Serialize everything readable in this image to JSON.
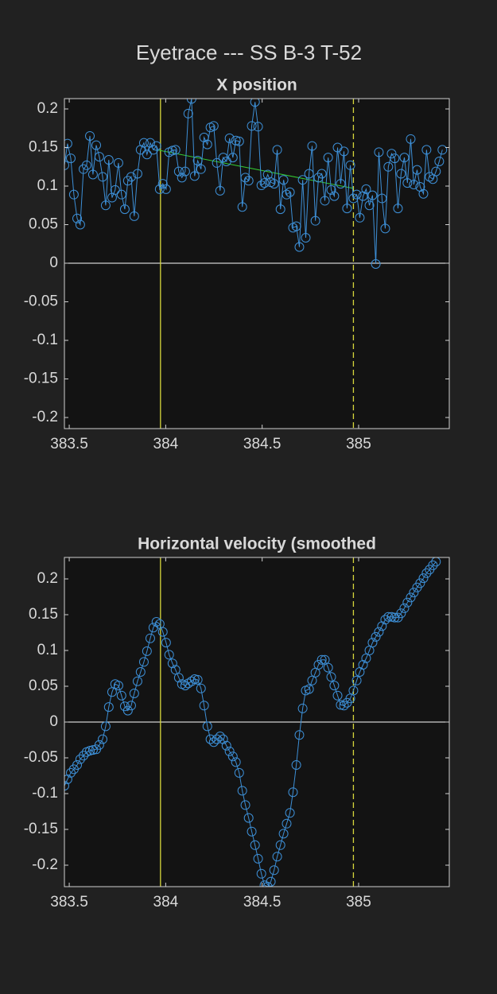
{
  "title": "Eyetrace --- SS B-3 T-52",
  "chart_data": [
    {
      "type": "line",
      "title": "X position",
      "x": [
        383.475,
        383.491,
        383.508,
        383.524,
        383.541,
        383.557,
        383.574,
        383.59,
        383.607,
        383.623,
        383.64,
        383.656,
        383.673,
        383.689,
        383.705,
        383.722,
        383.738,
        383.755,
        383.771,
        383.788,
        383.804,
        383.821,
        383.837,
        383.854,
        383.87,
        383.887,
        383.903,
        383.92,
        383.936,
        383.952,
        383.969,
        383.985,
        384.002,
        384.018,
        384.035,
        384.051,
        384.068,
        384.084,
        384.101,
        384.117,
        384.134,
        384.15,
        384.166,
        384.183,
        384.199,
        384.216,
        384.232,
        384.249,
        384.265,
        384.282,
        384.298,
        384.315,
        384.331,
        384.348,
        384.364,
        384.381,
        384.397,
        384.413,
        384.43,
        384.446,
        384.463,
        384.479,
        384.496,
        384.512,
        384.529,
        384.545,
        384.562,
        384.578,
        384.595,
        384.611,
        384.627,
        384.644,
        384.66,
        384.677,
        384.693,
        384.71,
        384.726,
        384.743,
        384.759,
        384.776,
        384.792,
        384.809,
        384.825,
        384.842,
        384.858,
        384.874,
        384.891,
        384.907,
        384.924,
        384.94,
        384.957,
        384.973,
        384.99,
        385.006,
        385.023,
        385.039,
        385.056,
        385.072,
        385.089,
        385.105,
        385.121,
        385.138,
        385.154,
        385.171,
        385.187,
        385.204,
        385.22,
        385.237,
        385.253,
        385.27,
        385.286,
        385.303,
        385.319,
        385.336,
        385.352,
        385.368,
        385.385,
        385.401,
        385.418,
        385.434
      ],
      "values": [
        0.127,
        0.155,
        0.136,
        0.089,
        0.058,
        0.05,
        0.122,
        0.127,
        0.165,
        0.115,
        0.153,
        0.138,
        0.112,
        0.075,
        0.134,
        0.085,
        0.095,
        0.13,
        0.089,
        0.07,
        0.107,
        0.112,
        0.061,
        0.116,
        0.147,
        0.156,
        0.141,
        0.156,
        0.147,
        0.152,
        0.096,
        0.103,
        0.096,
        0.144,
        0.146,
        0.147,
        0.119,
        0.111,
        0.119,
        0.194,
        0.213,
        0.113,
        0.133,
        0.122,
        0.163,
        0.154,
        0.176,
        0.178,
        0.13,
        0.094,
        0.137,
        0.132,
        0.162,
        0.137,
        0.159,
        0.158,
        0.073,
        0.111,
        0.107,
        0.178,
        0.209,
        0.177,
        0.101,
        0.104,
        0.115,
        0.105,
        0.103,
        0.147,
        0.07,
        0.108,
        0.089,
        0.092,
        0.046,
        0.048,
        0.021,
        0.108,
        0.033,
        0.116,
        0.152,
        0.055,
        0.111,
        0.116,
        0.081,
        0.137,
        0.095,
        0.087,
        0.15,
        0.103,
        0.145,
        0.071,
        0.127,
        0.084,
        0.089,
        0.059,
        0.087,
        0.096,
        0.075,
        0.088,
        -0.001,
        0.144,
        0.084,
        0.045,
        0.125,
        0.142,
        0.136,
        0.071,
        0.116,
        0.137,
        0.104,
        0.161,
        0.102,
        0.121,
        0.099,
        0.09,
        0.147,
        0.112,
        0.109,
        0.119,
        0.132,
        0.147
      ],
      "color": "#3d8fd6",
      "xlim": [
        383.475,
        385.47
      ],
      "xticks": [
        383.5,
        384,
        384.5,
        385
      ],
      "ylim": [
        -0.2144,
        0.2134
      ],
      "yticks": [
        -0.2,
        -0.15,
        -0.1,
        -0.05,
        0,
        0.05,
        0.1,
        0.15,
        0.2
      ],
      "hlines": [
        0
      ],
      "hline_color": "#ffffff",
      "vlines": [
        {
          "x": 383.973,
          "color": "#d6d63c",
          "style": "solid"
        },
        {
          "x": 384.973,
          "color": "#d6d63c",
          "style": "dashed"
        }
      ],
      "fit_line": {
        "x": [
          383.953,
          384.973
        ],
        "y": [
          0.147,
          0.097
        ],
        "color": "#33cc33"
      }
    },
    {
      "type": "line",
      "title": "Horizontal velocity (smoothed",
      "x": [
        383.475,
        383.491,
        383.508,
        383.524,
        383.541,
        383.557,
        383.574,
        383.59,
        383.607,
        383.623,
        383.64,
        383.656,
        383.673,
        383.689,
        383.705,
        383.722,
        383.738,
        383.755,
        383.771,
        383.788,
        383.804,
        383.821,
        383.837,
        383.854,
        383.87,
        383.887,
        383.903,
        383.92,
        383.936,
        383.952,
        383.969,
        383.985,
        384.002,
        384.018,
        384.035,
        384.051,
        384.068,
        384.084,
        384.101,
        384.117,
        384.134,
        384.15,
        384.166,
        384.183,
        384.199,
        384.216,
        384.232,
        384.249,
        384.265,
        384.282,
        384.298,
        384.315,
        384.331,
        384.348,
        384.364,
        384.381,
        384.397,
        384.413,
        384.43,
        384.446,
        384.463,
        384.479,
        384.496,
        384.512,
        384.529,
        384.545,
        384.562,
        384.578,
        384.595,
        384.611,
        384.627,
        384.644,
        384.66,
        384.677,
        384.693,
        384.71,
        384.726,
        384.743,
        384.759,
        384.776,
        384.792,
        384.809,
        384.825,
        384.842,
        384.858,
        384.874,
        384.891,
        384.907,
        384.924,
        384.94,
        384.957,
        384.973,
        384.99,
        385.006,
        385.023,
        385.039,
        385.056,
        385.072,
        385.089,
        385.105,
        385.121,
        385.138,
        385.154,
        385.171,
        385.187,
        385.204,
        385.22,
        385.237,
        385.253,
        385.27,
        385.286,
        385.303,
        385.319,
        385.336,
        385.352,
        385.368,
        385.385,
        385.401
      ],
      "values": [
        -0.089,
        -0.08,
        -0.071,
        -0.066,
        -0.06,
        -0.052,
        -0.047,
        -0.042,
        -0.04,
        -0.039,
        -0.038,
        -0.032,
        -0.024,
        -0.006,
        0.021,
        0.042,
        0.053,
        0.051,
        0.037,
        0.022,
        0.016,
        0.023,
        0.04,
        0.057,
        0.07,
        0.084,
        0.099,
        0.117,
        0.132,
        0.14,
        0.137,
        0.126,
        0.111,
        0.094,
        0.082,
        0.073,
        0.062,
        0.053,
        0.051,
        0.054,
        0.057,
        0.06,
        0.059,
        0.047,
        0.023,
        -0.006,
        -0.024,
        -0.028,
        -0.024,
        -0.02,
        -0.024,
        -0.033,
        -0.041,
        -0.048,
        -0.056,
        -0.071,
        -0.096,
        -0.116,
        -0.134,
        -0.153,
        -0.172,
        -0.191,
        -0.212,
        -0.228,
        -0.23,
        -0.223,
        -0.207,
        -0.188,
        -0.172,
        -0.156,
        -0.142,
        -0.127,
        -0.098,
        -0.06,
        -0.018,
        0.019,
        0.044,
        0.046,
        0.058,
        0.069,
        0.08,
        0.087,
        0.087,
        0.076,
        0.063,
        0.051,
        0.037,
        0.024,
        0.023,
        0.027,
        0.033,
        0.044,
        0.058,
        0.07,
        0.08,
        0.089,
        0.1,
        0.111,
        0.119,
        0.126,
        0.134,
        0.143,
        0.147,
        0.147,
        0.146,
        0.146,
        0.152,
        0.159,
        0.167,
        0.174,
        0.181,
        0.188,
        0.194,
        0.201,
        0.208,
        0.213,
        0.219,
        0.224
      ],
      "color": "#3d8fd6",
      "xlim": [
        383.475,
        385.47
      ],
      "xticks": [
        383.5,
        384,
        384.5,
        385
      ],
      "ylim": [
        -0.23,
        0.23
      ],
      "yticks": [
        -0.2,
        -0.15,
        -0.1,
        -0.05,
        0,
        0.05,
        0.1,
        0.15,
        0.2
      ],
      "hlines": [
        0
      ],
      "hline_color": "#ffffff",
      "vlines": [
        {
          "x": 383.973,
          "color": "#d6d63c",
          "style": "solid"
        },
        {
          "x": 384.973,
          "color": "#d6d63c",
          "style": "dashed"
        }
      ]
    }
  ]
}
